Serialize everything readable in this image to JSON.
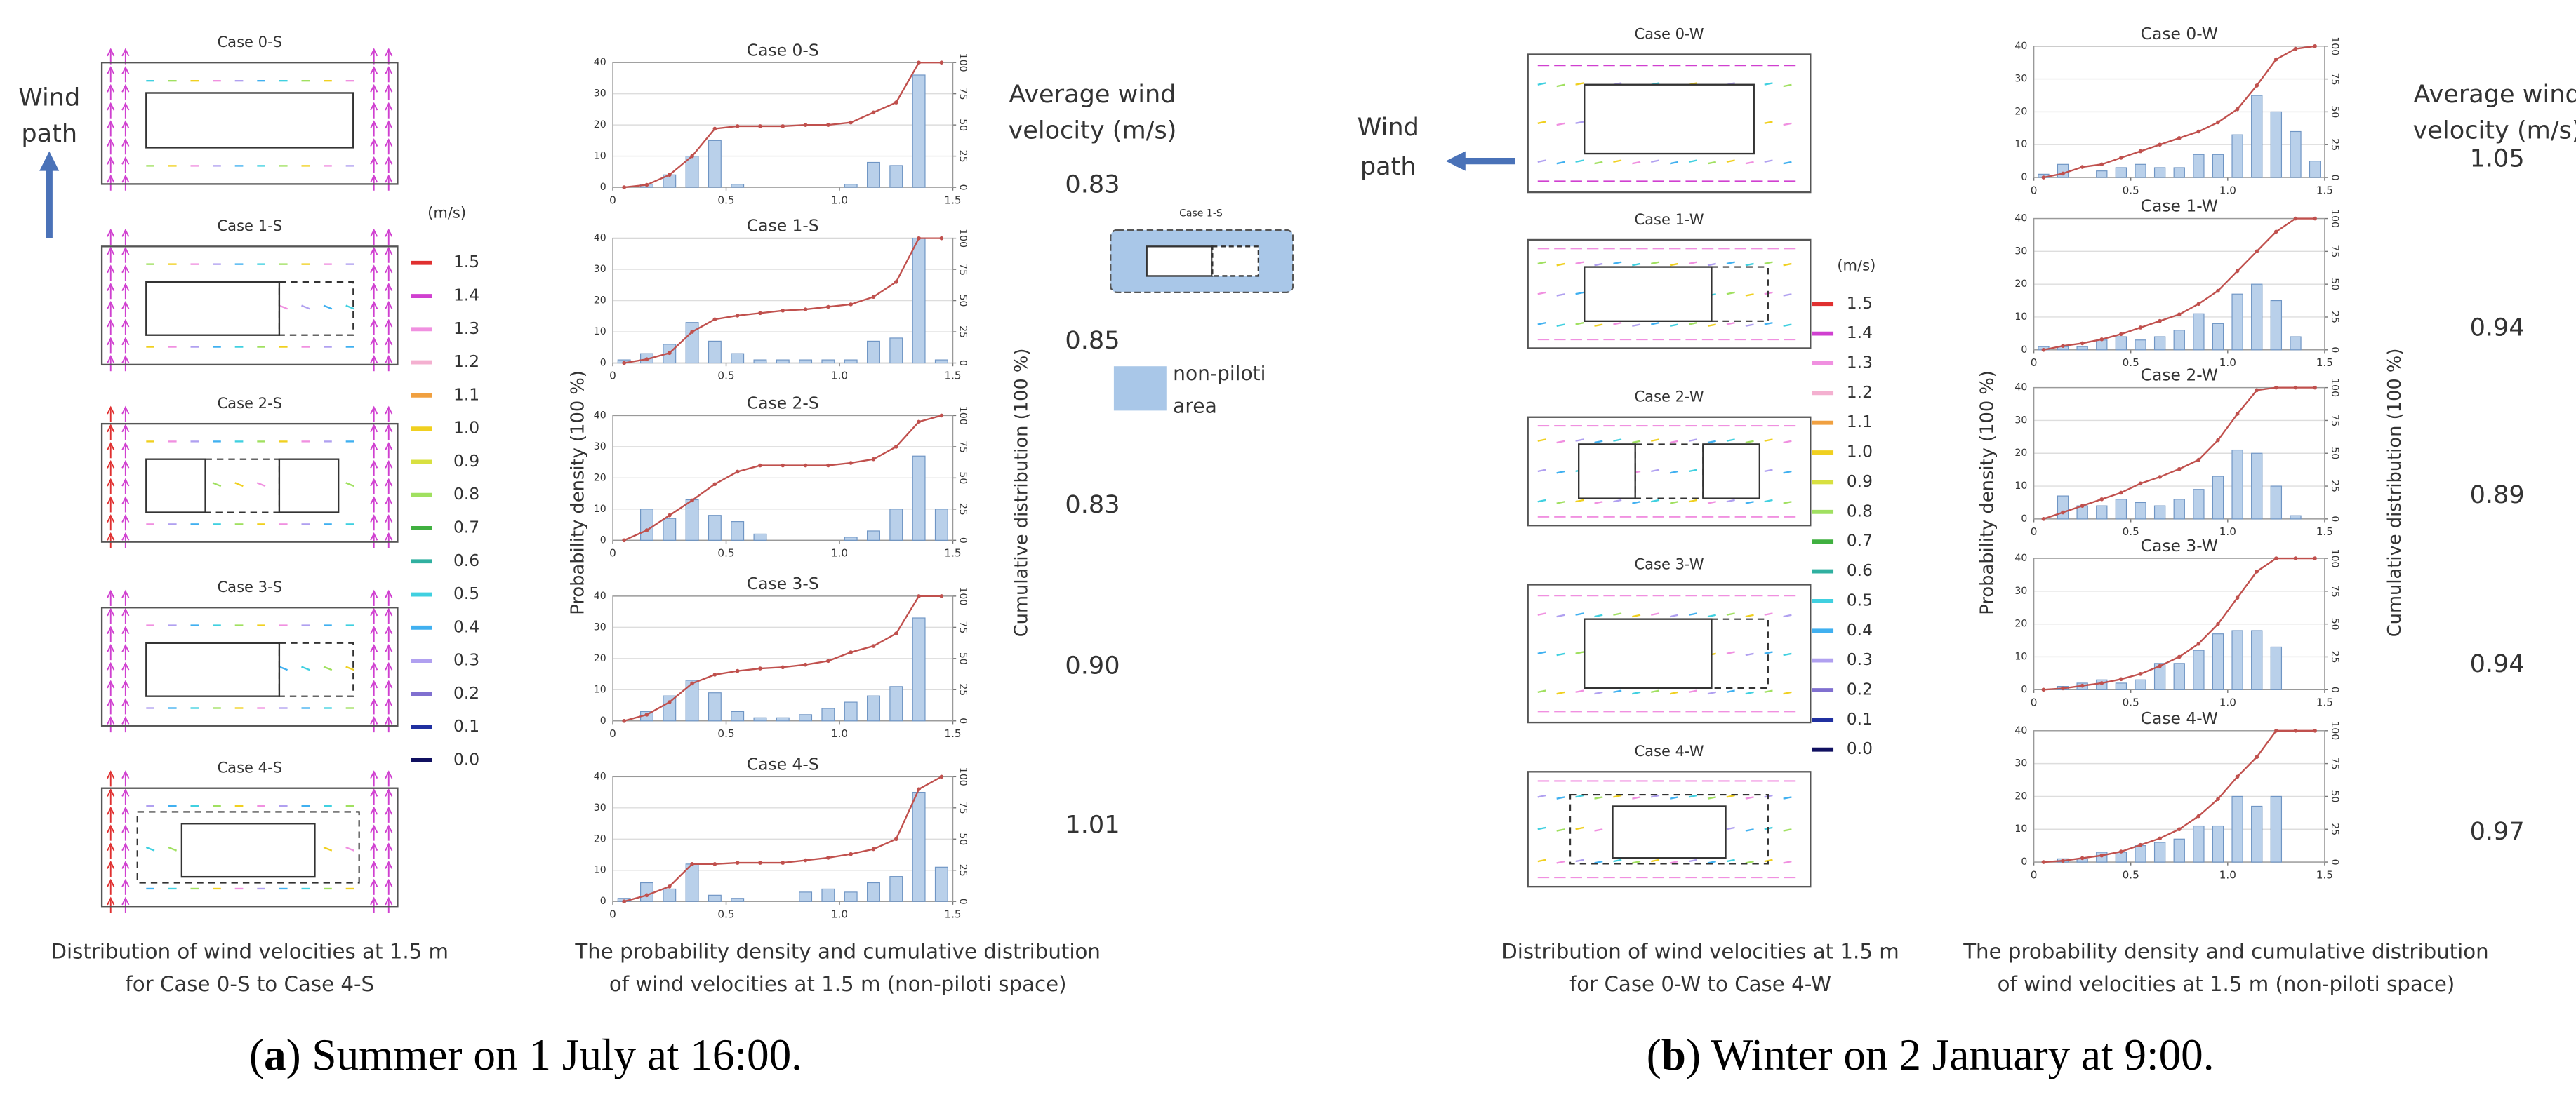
{
  "panels": [
    {
      "field_titles": [
        "Case 0-S",
        "Case 1-S",
        "Case 2-S",
        "Case 3-S",
        "Case 4-S"
      ],
      "wind_path": [
        "Wind",
        "path"
      ],
      "legend": {
        "unit": "(m/s)",
        "labels": [
          "1.5",
          "1.4",
          "1.3",
          "1.2",
          "1.1",
          "1.0",
          "0.9",
          "0.8",
          "0.7",
          "0.6",
          "0.5",
          "0.4",
          "0.3",
          "0.2",
          "0.1",
          "0.0"
        ],
        "colors": [
          "#e03030",
          "#d040d0",
          "#f090e0",
          "#f4b0d0",
          "#f0a040",
          "#f0d020",
          "#d8e040",
          "#a0e060",
          "#40b040",
          "#30b0a0",
          "#40d0e0",
          "#40b0f0",
          "#b0a0f0",
          "#8070d0",
          "#2030a0",
          "#101060"
        ]
      },
      "field_caption": [
        "Distribution of wind velocities at 1.5 m",
        "for Case 0-S to Case 4-S"
      ],
      "y_label": "Probability density (100 %)",
      "y2_label": "Cumulative distribution (100 %)",
      "chart_caption": [
        "The probability density and cumulative distribution",
        "of wind velocities at 1.5 m (non-piloti space)"
      ],
      "average_title": [
        "Average wind",
        "velocity (m/s)"
      ],
      "averages": [
        "0.83",
        "0.85",
        "0.83",
        "0.90",
        "1.01"
      ],
      "inset": {
        "title": "Case 1-S",
        "label": [
          "non-piloti",
          "area"
        ]
      },
      "caption": [
        "(",
        "a",
        ") Summer on 1 July at 16:00."
      ]
    },
    {
      "field_titles": [
        "Case 0-W",
        "Case 1-W",
        "Case 2-W",
        "Case 3-W",
        "Case 4-W"
      ],
      "wind_path": [
        "Wind",
        "path"
      ],
      "legend": {
        "unit": "(m/s)",
        "labels": [
          "1.5",
          "1.4",
          "1.3",
          "1.2",
          "1.1",
          "1.0",
          "0.9",
          "0.8",
          "0.7",
          "0.6",
          "0.5",
          "0.4",
          "0.3",
          "0.2",
          "0.1",
          "0.0"
        ],
        "colors": [
          "#e03030",
          "#d040d0",
          "#f090e0",
          "#f4b0d0",
          "#f0a040",
          "#f0d020",
          "#d8e040",
          "#a0e060",
          "#40b040",
          "#30b0a0",
          "#40d0e0",
          "#40b0f0",
          "#b0a0f0",
          "#8070d0",
          "#2030a0",
          "#101060"
        ]
      },
      "field_caption": [
        "Distribution of wind velocities at 1.5 m",
        "for Case 0-W to Case 4-W"
      ],
      "y_label": "Probability density (100 %)",
      "y2_label": "Cumulative distribution (100 %)",
      "chart_caption": [
        "The probability density and cumulative distribution",
        "of wind velocities at 1.5 m (non-piloti space)"
      ],
      "average_title": [
        "Average wind",
        "velocity (m/s)"
      ],
      "averages": [
        "1.05",
        "0.94",
        "0.89",
        "0.94",
        "0.97"
      ],
      "caption": [
        "(",
        "b",
        ") Winter on 2 January at 9:00."
      ]
    }
  ],
  "chart_data": [
    {
      "type": "bar",
      "title": "Case 0-S",
      "x": [
        0.05,
        0.15,
        0.25,
        0.35,
        0.45,
        0.55,
        0.65,
        0.75,
        0.85,
        0.95,
        1.05,
        1.15,
        1.25,
        1.35,
        1.45
      ],
      "series": [
        {
          "type": "bar",
          "color": "#b9d0ea",
          "values": [
            0,
            1,
            4,
            10,
            15,
            1,
            0,
            0,
            0,
            0,
            1,
            8,
            7,
            36,
            0
          ]
        },
        {
          "type": "line",
          "axis": "y2",
          "color": "#c0504d",
          "values": [
            0,
            2,
            10,
            25,
            47,
            49,
            49,
            49,
            50,
            50,
            52,
            60,
            68,
            100,
            100
          ]
        }
      ],
      "xlim": [
        0,
        1.5
      ],
      "xticks": [
        0,
        0.5,
        {
          "value": 1,
          "label": "1.0"
        },
        1.5
      ],
      "ylim": [
        0,
        40
      ],
      "yticks": [
        0,
        10,
        20,
        30,
        40
      ],
      "y2lim": [
        0,
        100
      ],
      "y2ticks": [
        0,
        25,
        50,
        75,
        100
      ],
      "grid": true
    },
    {
      "type": "bar",
      "title": "Case 1-S",
      "x": [
        0.05,
        0.15,
        0.25,
        0.35,
        0.45,
        0.55,
        0.65,
        0.75,
        0.85,
        0.95,
        1.05,
        1.15,
        1.25,
        1.35,
        1.45
      ],
      "series": [
        {
          "type": "bar",
          "color": "#b9d0ea",
          "values": [
            1,
            3,
            6,
            13,
            7,
            3,
            1,
            1,
            1,
            1,
            1,
            7,
            8,
            40,
            1
          ]
        },
        {
          "type": "line",
          "axis": "y2",
          "color": "#c0504d",
          "values": [
            0,
            3,
            8,
            25,
            35,
            38,
            40,
            42,
            43,
            45,
            47,
            53,
            65,
            100,
            100
          ]
        }
      ],
      "xlim": [
        0,
        1.5
      ],
      "xticks": [
        0,
        0.5,
        {
          "value": 1,
          "label": "1.0"
        },
        1.5
      ],
      "ylim": [
        0,
        40
      ],
      "yticks": [
        0,
        10,
        20,
        30,
        40
      ],
      "y2lim": [
        0,
        100
      ],
      "y2ticks": [
        0,
        25,
        50,
        75,
        100
      ],
      "grid": true
    },
    {
      "type": "bar",
      "title": "Case 2-S",
      "x": [
        0.05,
        0.15,
        0.25,
        0.35,
        0.45,
        0.55,
        0.65,
        0.75,
        0.85,
        0.95,
        1.05,
        1.15,
        1.25,
        1.35,
        1.45
      ],
      "series": [
        {
          "type": "bar",
          "color": "#b9d0ea",
          "values": [
            0,
            10,
            7,
            13,
            8,
            6,
            2,
            0,
            0,
            0,
            1,
            3,
            10,
            27,
            10
          ]
        },
        {
          "type": "line",
          "axis": "y2",
          "color": "#c0504d",
          "values": [
            0,
            8,
            20,
            32,
            45,
            55,
            60,
            60,
            60,
            60,
            62,
            65,
            75,
            95,
            100
          ]
        }
      ],
      "xlim": [
        0,
        1.5
      ],
      "xticks": [
        0,
        0.5,
        {
          "value": 1,
          "label": "1.0"
        },
        1.5
      ],
      "ylim": [
        0,
        40
      ],
      "yticks": [
        0,
        10,
        20,
        30,
        40
      ],
      "y2lim": [
        0,
        100
      ],
      "y2ticks": [
        0,
        25,
        50,
        75,
        100
      ],
      "grid": true
    },
    {
      "type": "bar",
      "title": "Case 3-S",
      "x": [
        0.05,
        0.15,
        0.25,
        0.35,
        0.45,
        0.55,
        0.65,
        0.75,
        0.85,
        0.95,
        1.05,
        1.15,
        1.25,
        1.35,
        1.45
      ],
      "series": [
        {
          "type": "bar",
          "color": "#b9d0ea",
          "values": [
            0,
            3,
            8,
            13,
            9,
            3,
            1,
            1,
            2,
            4,
            6,
            8,
            11,
            33,
            0
          ]
        },
        {
          "type": "line",
          "axis": "y2",
          "color": "#c0504d",
          "values": [
            0,
            5,
            15,
            30,
            37,
            40,
            42,
            43,
            45,
            48,
            55,
            60,
            70,
            100,
            100
          ]
        }
      ],
      "xlim": [
        0,
        1.5
      ],
      "xticks": [
        0,
        0.5,
        {
          "value": 1,
          "label": "1.0"
        },
        1.5
      ],
      "ylim": [
        0,
        40
      ],
      "yticks": [
        0,
        10,
        20,
        30,
        40
      ],
      "y2lim": [
        0,
        100
      ],
      "y2ticks": [
        0,
        25,
        50,
        75,
        100
      ],
      "grid": true
    },
    {
      "type": "bar",
      "title": "Case 4-S",
      "x": [
        0.05,
        0.15,
        0.25,
        0.35,
        0.45,
        0.55,
        0.65,
        0.75,
        0.85,
        0.95,
        1.05,
        1.15,
        1.25,
        1.35,
        1.45
      ],
      "series": [
        {
          "type": "bar",
          "color": "#b9d0ea",
          "values": [
            1,
            6,
            4,
            12,
            2,
            1,
            0,
            0,
            3,
            4,
            3,
            6,
            8,
            35,
            11
          ]
        },
        {
          "type": "line",
          "axis": "y2",
          "color": "#c0504d",
          "values": [
            0,
            5,
            12,
            30,
            30,
            31,
            31,
            31,
            33,
            35,
            38,
            42,
            50,
            90,
            100
          ]
        }
      ],
      "xlim": [
        0,
        1.5
      ],
      "xticks": [
        0,
        0.5,
        {
          "value": 1,
          "label": "1.0"
        },
        1.5
      ],
      "ylim": [
        0,
        40
      ],
      "yticks": [
        0,
        10,
        20,
        30,
        40
      ],
      "y2lim": [
        0,
        100
      ],
      "y2ticks": [
        0,
        25,
        50,
        75,
        100
      ],
      "grid": true
    },
    {
      "type": "bar",
      "title": "Case 0-W",
      "x": [
        0.05,
        0.15,
        0.25,
        0.35,
        0.45,
        0.55,
        0.65,
        0.75,
        0.85,
        0.95,
        1.05,
        1.15,
        1.25,
        1.35,
        1.45
      ],
      "series": [
        {
          "type": "bar",
          "color": "#b9d0ea",
          "values": [
            1,
            4,
            0,
            2,
            3,
            4,
            3,
            3,
            7,
            7,
            13,
            25,
            20,
            14,
            5
          ]
        },
        {
          "type": "line",
          "axis": "y2",
          "color": "#c0504d",
          "values": [
            0,
            3,
            8,
            10,
            15,
            20,
            25,
            30,
            35,
            42,
            52,
            70,
            90,
            98,
            100
          ]
        }
      ],
      "xlim": [
        0,
        1.5
      ],
      "xticks": [
        0,
        0.5,
        {
          "value": 1,
          "label": "1.0"
        },
        1.5
      ],
      "ylim": [
        0,
        40
      ],
      "yticks": [
        0,
        10,
        20,
        30,
        40
      ],
      "y2lim": [
        0,
        100
      ],
      "y2ticks": [
        0,
        25,
        50,
        75,
        100
      ],
      "grid": true
    },
    {
      "type": "bar",
      "title": "Case 1-W",
      "x": [
        0.05,
        0.15,
        0.25,
        0.35,
        0.45,
        0.55,
        0.65,
        0.75,
        0.85,
        0.95,
        1.05,
        1.15,
        1.25,
        1.35,
        1.45
      ],
      "series": [
        {
          "type": "bar",
          "color": "#b9d0ea",
          "values": [
            1,
            1,
            1,
            3,
            4,
            3,
            4,
            6,
            11,
            8,
            17,
            20,
            15,
            4,
            0
          ]
        },
        {
          "type": "line",
          "axis": "y2",
          "color": "#c0504d",
          "values": [
            0,
            3,
            5,
            8,
            12,
            17,
            22,
            27,
            35,
            45,
            60,
            75,
            90,
            100,
            100
          ]
        }
      ],
      "xlim": [
        0,
        1.5
      ],
      "xticks": [
        0,
        0.5,
        {
          "value": 1,
          "label": "1.0"
        },
        1.5
      ],
      "ylim": [
        0,
        40
      ],
      "yticks": [
        0,
        10,
        20,
        30,
        40
      ],
      "y2lim": [
        0,
        100
      ],
      "y2ticks": [
        0,
        25,
        50,
        75,
        100
      ],
      "grid": true
    },
    {
      "type": "bar",
      "title": "Case 2-W",
      "x": [
        0.05,
        0.15,
        0.25,
        0.35,
        0.45,
        0.55,
        0.65,
        0.75,
        0.85,
        0.95,
        1.05,
        1.15,
        1.25,
        1.35,
        1.45
      ],
      "series": [
        {
          "type": "bar",
          "color": "#b9d0ea",
          "values": [
            0,
            7,
            4,
            4,
            6,
            5,
            4,
            6,
            9,
            13,
            21,
            20,
            10,
            1,
            0
          ]
        },
        {
          "type": "line",
          "axis": "y2",
          "color": "#c0504d",
          "values": [
            0,
            5,
            10,
            15,
            20,
            27,
            32,
            38,
            45,
            60,
            80,
            98,
            100,
            100,
            100
          ]
        }
      ],
      "xlim": [
        0,
        1.5
      ],
      "xticks": [
        0,
        0.5,
        {
          "value": 1,
          "label": "1.0"
        },
        1.5
      ],
      "ylim": [
        0,
        40
      ],
      "yticks": [
        0,
        10,
        20,
        30,
        40
      ],
      "y2lim": [
        0,
        100
      ],
      "y2ticks": [
        0,
        25,
        50,
        75,
        100
      ],
      "grid": true
    },
    {
      "type": "bar",
      "title": "Case 3-W",
      "x": [
        0.05,
        0.15,
        0.25,
        0.35,
        0.45,
        0.55,
        0.65,
        0.75,
        0.85,
        0.95,
        1.05,
        1.15,
        1.25,
        1.35,
        1.45
      ],
      "series": [
        {
          "type": "bar",
          "color": "#b9d0ea",
          "values": [
            0,
            1,
            2,
            3,
            2,
            3,
            8,
            8,
            12,
            17,
            18,
            18,
            13,
            0,
            0
          ]
        },
        {
          "type": "line",
          "axis": "y2",
          "color": "#c0504d",
          "values": [
            0,
            1,
            3,
            5,
            8,
            12,
            18,
            25,
            35,
            50,
            70,
            90,
            100,
            100,
            100
          ]
        }
      ],
      "xlim": [
        0,
        1.5
      ],
      "xticks": [
        0,
        0.5,
        {
          "value": 1,
          "label": "1.0"
        },
        1.5
      ],
      "ylim": [
        0,
        40
      ],
      "yticks": [
        0,
        10,
        20,
        30,
        40
      ],
      "y2lim": [
        0,
        100
      ],
      "y2ticks": [
        0,
        25,
        50,
        75,
        100
      ],
      "grid": true
    },
    {
      "type": "bar",
      "title": "Case 4-W",
      "x": [
        0.05,
        0.15,
        0.25,
        0.35,
        0.45,
        0.55,
        0.65,
        0.75,
        0.85,
        0.95,
        1.05,
        1.15,
        1.25,
        1.35,
        1.45
      ],
      "series": [
        {
          "type": "bar",
          "color": "#b9d0ea",
          "values": [
            0,
            1,
            1,
            3,
            3,
            5,
            6,
            7,
            11,
            11,
            20,
            17,
            20,
            0,
            0
          ]
        },
        {
          "type": "line",
          "axis": "y2",
          "color": "#c0504d",
          "values": [
            0,
            1,
            3,
            5,
            8,
            13,
            18,
            25,
            35,
            48,
            65,
            80,
            100,
            100,
            100
          ]
        }
      ],
      "xlim": [
        0,
        1.5
      ],
      "xticks": [
        0,
        0.5,
        {
          "value": 1,
          "label": "1.0"
        },
        1.5
      ],
      "ylim": [
        0,
        40
      ],
      "yticks": [
        0,
        10,
        20,
        30,
        40
      ],
      "y2lim": [
        0,
        100
      ],
      "y2ticks": [
        0,
        25,
        50,
        75,
        100
      ],
      "grid": true
    }
  ]
}
